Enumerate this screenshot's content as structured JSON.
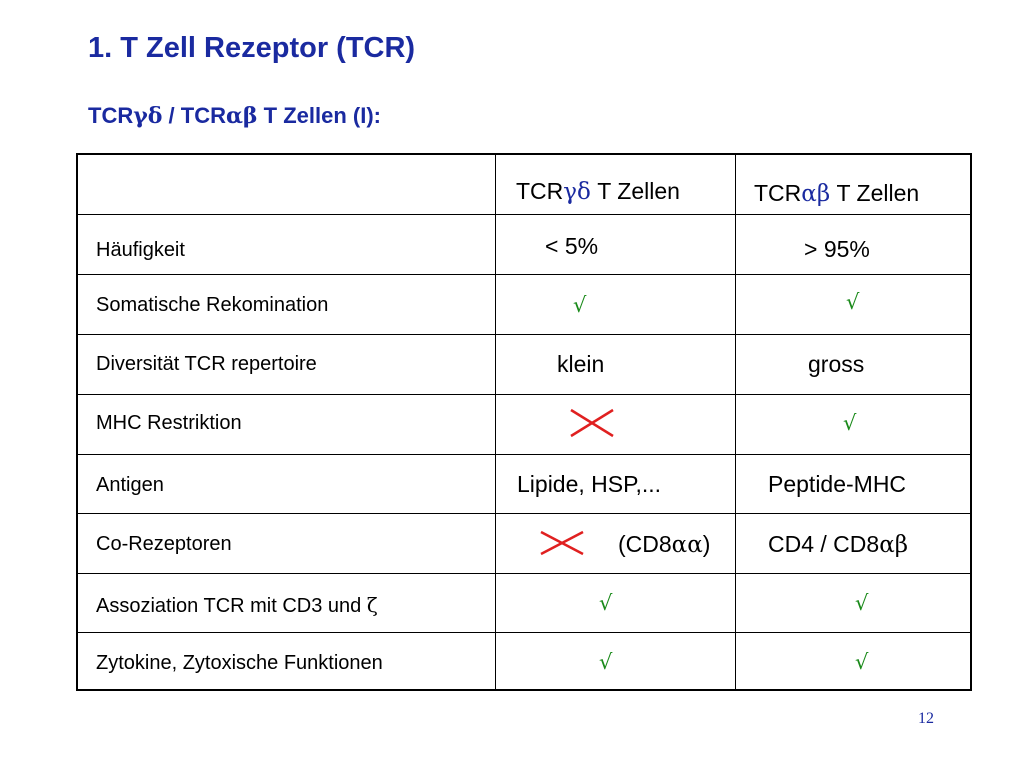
{
  "slide": {
    "title": "1. T Zell Rezeptor (TCR)",
    "subtitle_prefix": "TCR",
    "subtitle_greek1": "γδ",
    "subtitle_mid": " / TCR",
    "subtitle_greek2": "αβ",
    "subtitle_suffix": " T Zellen (I):",
    "page_number": "12"
  },
  "header": {
    "gd_prefix": "TCR",
    "gd_greek": "γδ",
    "gd_suffix": " T Zellen",
    "ab_prefix": "TCR",
    "ab_greek": "αβ",
    "ab_suffix": " T Zellen"
  },
  "rows": [
    {
      "label": "Häufigkeit",
      "gd": "< 5%",
      "ab": "> 95%"
    },
    {
      "label": "Somatische Rekomination",
      "gd": "√",
      "ab": "√"
    },
    {
      "label": "Diversität TCR repertoire",
      "gd": "klein",
      "ab": "gross"
    },
    {
      "label": "MHC Restriktion",
      "gd_icon": "red-cross-icon",
      "ab": "√"
    },
    {
      "label": "Antigen",
      "gd": "Lipide, HSP,...",
      "ab": "Peptide-MHC"
    },
    {
      "label": "Co-Rezeptoren",
      "gd_icon": "red-cross-icon",
      "gd_note_prefix": "(CD8",
      "gd_note_greek": "αα",
      "gd_note_suffix": ")",
      "ab_prefix": "CD4 / CD8",
      "ab_greek": "αβ"
    },
    {
      "label_prefix": "Assoziation TCR mit CD3 und ",
      "label_greek": "ζ",
      "gd": "√",
      "ab": "√"
    },
    {
      "label": "Zytokine, Zytoxische Funktionen",
      "gd": "√",
      "ab": "√"
    }
  ],
  "colors": {
    "title": "#1a2aa0",
    "check": "#1a8a1a",
    "cross": "#e02020"
  }
}
